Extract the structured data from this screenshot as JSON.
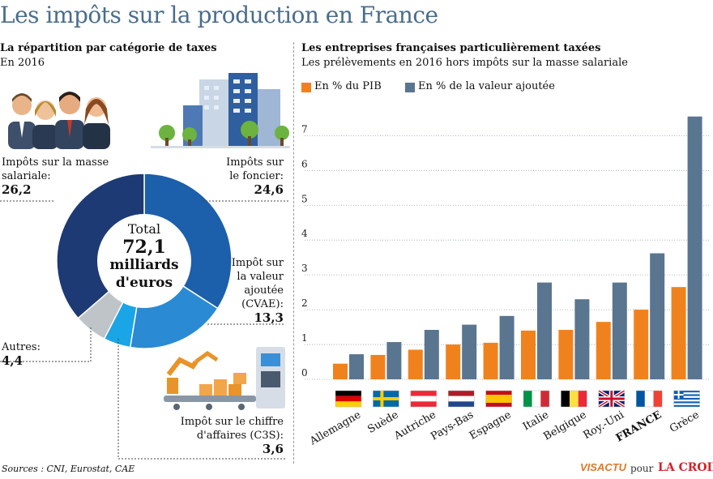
{
  "title": "Les impôts sur la production en France",
  "left": {
    "subtitle": "La répartition par catégorie de taxes",
    "year": "En 2016",
    "total_label": "Total",
    "total_value": "72,1",
    "total_unit": "milliards",
    "total_unit2": "d'euros",
    "segments": [
      {
        "label": "Impôts sur le foncier:",
        "label_lines": [
          "Impôts sur",
          "le foncier:"
        ],
        "value": "24,6",
        "color": "#1c5faa"
      },
      {
        "label": "Impôt sur la valeur ajoutée (CVAE):",
        "label_lines": [
          "Impôt sur",
          "la valeur",
          "ajoutée",
          "(CVAE):"
        ],
        "value": "13,3",
        "color": "#2a8ad4"
      },
      {
        "label": "Impôt sur le chiffre d'affaires (C3S):",
        "label_lines": [
          "Impôt sur le chiffre",
          "d'affaires (C3S):"
        ],
        "value": "3,6",
        "color": "#1aa5e6"
      },
      {
        "label": "Autres:",
        "label_lines": [
          "Autres:"
        ],
        "value": "4,4",
        "color": "#bfc4c8"
      },
      {
        "label": "Impôts sur la masse salariale:",
        "label_lines": [
          "Impôts sur la masse",
          "salariale:"
        ],
        "value": "26,2",
        "color": "#1e3a74"
      }
    ]
  },
  "chart_data": {
    "type": "bar",
    "title": "Les entreprises françaises particulièrement taxées",
    "subtitle": "Les prélèvements en 2016 hors impôts sur la masse salariale",
    "categories": [
      "Allemagne",
      "Suède",
      "Autriche",
      "Pays-Bas",
      "Espagne",
      "Italie",
      "Belgique",
      "Roy.-Uni",
      "FRANCE",
      "Grèce"
    ],
    "series": [
      {
        "name": "En % du PIB",
        "color": "#f0821e",
        "values": [
          0.45,
          0.7,
          0.85,
          1.0,
          1.05,
          1.4,
          1.42,
          1.65,
          2.0,
          2.65
        ]
      },
      {
        "name": "En % de la valeur ajoutée",
        "color": "#5a7590",
        "values": [
          0.72,
          1.07,
          1.42,
          1.57,
          1.82,
          2.78,
          2.3,
          2.78,
          3.62,
          7.55
        ]
      }
    ],
    "yticks": [
      "0",
      "1",
      "2",
      "3",
      "4",
      "5",
      "6",
      "7"
    ],
    "ylim": [
      0,
      7.8
    ],
    "xlabel": "",
    "ylabel": ""
  },
  "footer": {
    "sources": "Sources : CNI, Eurostat, CAE",
    "brand1": "VISACTU",
    "pour": "pour",
    "brand2": "LA CROIX"
  }
}
